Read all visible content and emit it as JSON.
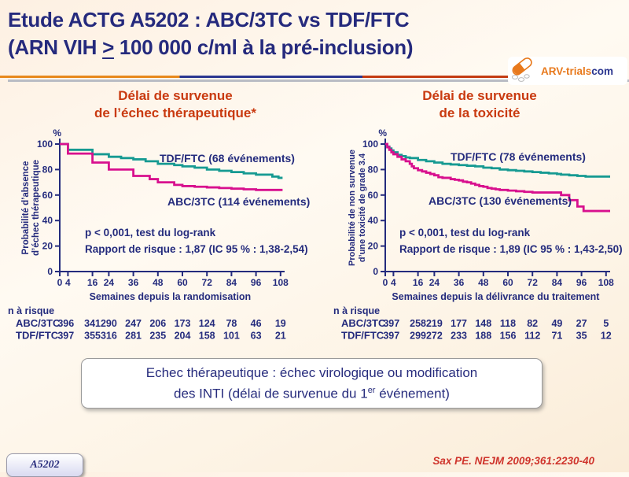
{
  "header": {
    "title_line1": "Etude ACTG A5202 : ABC/3TC vs TDF/FTC",
    "title_line2_pre": "(ARN VIH ",
    "title_line2_geq": ">",
    "title_line2_post": " 100 000 c/ml à la pré-inclusion)",
    "logo_main": "ARV-trials",
    "logo_suffix": "com"
  },
  "colors": {
    "navy": "#242b7d",
    "teal": "#169a92",
    "magenta": "#d8108e",
    "heading_red": "#c93a10",
    "citation_red": "#cf342c",
    "orange": "#e8891c",
    "gray_line": "#b9bcc4"
  },
  "chart_data": [
    {
      "type": "line",
      "subtype": "kaplan-meier-step",
      "title_lines": [
        "Délai de survenue",
        "de l’échec thérapeutique*"
      ],
      "ylabel_lines": [
        "Probabilité d’absence",
        "d’échec thérapeutique"
      ],
      "xlabel": "Semaines depuis la randomisation",
      "y_unit": "%",
      "xlim": [
        0,
        112
      ],
      "ylim": [
        0,
        100
      ],
      "x_ticks": [
        0,
        4,
        16,
        24,
        36,
        48,
        60,
        72,
        84,
        96,
        108
      ],
      "y_ticks": [
        0,
        20,
        40,
        60,
        80,
        100
      ],
      "stats_lines": [
        "p < 0,001, test du log-rank",
        "Rapport de risque : 1,87 (IC 95 % : 1,38-2,54)"
      ],
      "stats_pos": [
        102,
        140
      ],
      "series": [
        {
          "name": "TDF/FTC",
          "label": "TDF/FTC (68 événements)",
          "color": "#169a92",
          "legend_pos": [
            197,
            46
          ],
          "end_week": 109,
          "points": [
            [
              0,
              100
            ],
            [
              4,
              95.5
            ],
            [
              16,
              92
            ],
            [
              24,
              90
            ],
            [
              30,
              89
            ],
            [
              36,
              88
            ],
            [
              42,
              86.5
            ],
            [
              48,
              84.5
            ],
            [
              56,
              83.5
            ],
            [
              60,
              82.5
            ],
            [
              66,
              81.5
            ],
            [
              72,
              80
            ],
            [
              78,
              79
            ],
            [
              84,
              78
            ],
            [
              90,
              77
            ],
            [
              96,
              76
            ],
            [
              104,
              74.5
            ],
            [
              107,
              73.5
            ]
          ]
        },
        {
          "name": "ABC/3TC",
          "label": "ABC/3TC (114 événements)",
          "color": "#d8108e",
          "legend_pos": [
            207,
            101
          ],
          "end_week": 109,
          "points": [
            [
              0,
              100
            ],
            [
              4,
              92.5
            ],
            [
              16,
              85.5
            ],
            [
              24,
              80
            ],
            [
              36,
              75
            ],
            [
              44,
              72.5
            ],
            [
              48,
              70
            ],
            [
              56,
              68
            ],
            [
              60,
              67
            ],
            [
              66,
              66.5
            ],
            [
              72,
              66
            ],
            [
              78,
              65.5
            ],
            [
              84,
              65
            ],
            [
              90,
              64.5
            ],
            [
              96,
              64
            ]
          ]
        }
      ],
      "risk_table": {
        "header": "n à risque",
        "week_cols": [
          3,
          16,
          24,
          36,
          48,
          60,
          72,
          84,
          96,
          108
        ],
        "rows": [
          {
            "name": "ABC/3TC",
            "color": "#d8108e",
            "values": [
              396,
              341,
              290,
              247,
              206,
              173,
              124,
              78,
              46,
              19
            ]
          },
          {
            "name": "TDF/FTC",
            "color": "#169a92",
            "values": [
              397,
              355,
              316,
              281,
              235,
              204,
              158,
              101,
              63,
              21
            ]
          }
        ]
      }
    },
    {
      "type": "line",
      "subtype": "kaplan-meier-step",
      "title_lines": [
        "Délai de survenue",
        "de la toxicité"
      ],
      "ylabel_lines": [
        "Probabilité de non survenue",
        "d’une toxicité de grade 3.4"
      ],
      "xlabel": "Semaines depuis la délivrance du traitement",
      "y_unit": "%",
      "xlim": [
        0,
        112
      ],
      "ylim": [
        0,
        100
      ],
      "x_ticks": [
        0,
        4,
        16,
        24,
        36,
        48,
        60,
        72,
        84,
        96,
        108
      ],
      "y_ticks": [
        0,
        20,
        40,
        60,
        80,
        100
      ],
      "stats_lines": [
        "p < 0,001, test du log-rank",
        "Rapport de risque : 1,89 (IC 95 % : 1,43-2,50)"
      ],
      "stats_pos": [
        88,
        140
      ],
      "series": [
        {
          "name": "TDF/FTC",
          "label": "TDF/FTC (78 événements)",
          "color": "#169a92",
          "legend_pos": [
            153,
            44
          ],
          "end_week": 110,
          "points": [
            [
              0,
              100
            ],
            [
              1,
              98
            ],
            [
              2,
              96.5
            ],
            [
              3,
              95
            ],
            [
              4,
              93.5
            ],
            [
              6,
              91.5
            ],
            [
              8,
              90.5
            ],
            [
              10,
              89.5
            ],
            [
              12,
              89
            ],
            [
              16,
              87.5
            ],
            [
              20,
              86.5
            ],
            [
              24,
              85.5
            ],
            [
              28,
              84.5
            ],
            [
              32,
              84
            ],
            [
              36,
              83.5
            ],
            [
              40,
              83
            ],
            [
              44,
              82.5
            ],
            [
              48,
              81.5
            ],
            [
              52,
              81
            ],
            [
              56,
              80
            ],
            [
              60,
              79.5
            ],
            [
              64,
              79
            ],
            [
              68,
              78.5
            ],
            [
              72,
              78
            ],
            [
              76,
              77.5
            ],
            [
              80,
              77
            ],
            [
              84,
              76.5
            ],
            [
              86,
              76
            ],
            [
              90,
              75.5
            ],
            [
              94,
              75
            ],
            [
              98,
              74.5
            ]
          ]
        },
        {
          "name": "ABC/3TC",
          "label": "ABC/3TC (130 événements)",
          "color": "#d8108e",
          "legend_pos": [
            125,
            100
          ],
          "end_week": 110,
          "points": [
            [
              0,
              100
            ],
            [
              1,
              97.5
            ],
            [
              2,
              95.5
            ],
            [
              3,
              93.5
            ],
            [
              4,
              92
            ],
            [
              6,
              90
            ],
            [
              8,
              88
            ],
            [
              10,
              86.5
            ],
            [
              12,
              84.5
            ],
            [
              13,
              82.5
            ],
            [
              14,
              81
            ],
            [
              16,
              79.5
            ],
            [
              18,
              78.5
            ],
            [
              20,
              77.5
            ],
            [
              22,
              76.5
            ],
            [
              24,
              75.5
            ],
            [
              26,
              74
            ],
            [
              28,
              73.5
            ],
            [
              32,
              72.5
            ],
            [
              34,
              72
            ],
            [
              36,
              71.5
            ],
            [
              38,
              70.5
            ],
            [
              40,
              70
            ],
            [
              42,
              69
            ],
            [
              44,
              68
            ],
            [
              46,
              67
            ],
            [
              48,
              66.5
            ],
            [
              50,
              65.5
            ],
            [
              52,
              65
            ],
            [
              54,
              64.5
            ],
            [
              56,
              64
            ],
            [
              60,
              63.5
            ],
            [
              64,
              63
            ],
            [
              68,
              62.5
            ],
            [
              72,
              62
            ],
            [
              86,
              60
            ],
            [
              90,
              56
            ],
            [
              94,
              51
            ],
            [
              97,
              47.5
            ]
          ]
        }
      ],
      "risk_table": {
        "header": "n à risque",
        "week_cols": [
          3,
          16,
          24,
          36,
          48,
          60,
          72,
          84,
          96,
          108
        ],
        "rows": [
          {
            "name": "ABC/3TC",
            "color": "#d8108e",
            "values": [
              397,
              258,
              219,
              177,
              148,
              118,
              82,
              49,
              27,
              5
            ]
          },
          {
            "name": "TDF/FTC",
            "color": "#169a92",
            "values": [
              397,
              299,
              272,
              233,
              188,
              156,
              112,
              71,
              35,
              12
            ]
          }
        ]
      }
    }
  ],
  "note": {
    "line1": "Echec thérapeutique : échec virologique ou modification",
    "line2_pre": "des INTI (délai de survenue du 1",
    "line2_sup": "er",
    "line2_post": " événement)"
  },
  "footer": {
    "badge": "A5202",
    "citation": "Sax PE. NEJM 2009;361:2230-40"
  }
}
